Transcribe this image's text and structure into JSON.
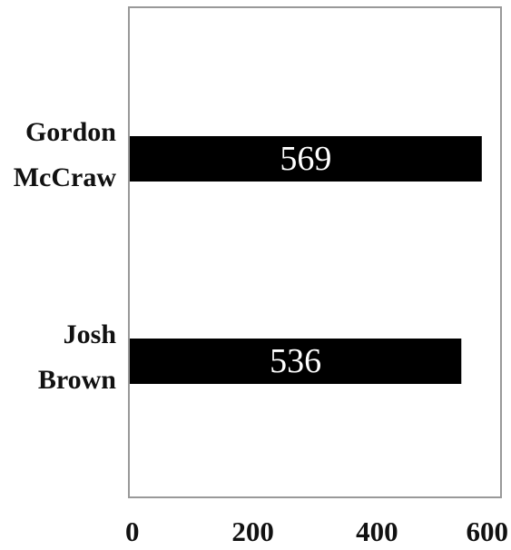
{
  "colors": {
    "bar": "#000000",
    "frame": "#999999",
    "bar_label": "#ffffff"
  },
  "chart_data": {
    "type": "bar",
    "orientation": "horizontal",
    "categories": [
      "Gordon McCraw",
      "Josh Brown"
    ],
    "category_label_lines": [
      [
        "Gordon",
        "McCraw"
      ],
      [
        "Josh",
        "Brown"
      ]
    ],
    "values": [
      569,
      536
    ],
    "data_labels": [
      "569",
      "536"
    ],
    "xlim": [
      0,
      600
    ],
    "xticks": [
      0,
      200,
      400,
      600
    ],
    "xtick_labels": [
      "0",
      "200",
      "400",
      "600"
    ],
    "title": "",
    "xlabel": "",
    "ylabel": "",
    "grid": false,
    "legend": "none"
  }
}
